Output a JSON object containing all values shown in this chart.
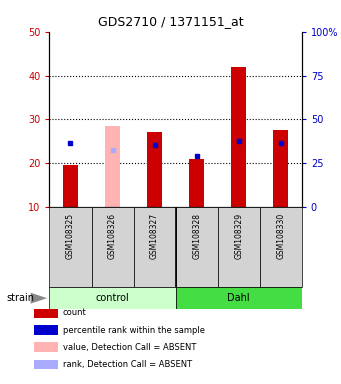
{
  "title": "GDS2710 / 1371151_at",
  "samples": [
    "GSM108325",
    "GSM108326",
    "GSM108327",
    "GSM108328",
    "GSM108329",
    "GSM108330"
  ],
  "groups": [
    "control",
    "control",
    "control",
    "Dahl",
    "Dahl",
    "Dahl"
  ],
  "group_labels": [
    "control",
    "Dahl"
  ],
  "group_colors_light": "#ccffcc",
  "group_colors_dark": "#44dd44",
  "bar_bottom": 10,
  "ylim_left": [
    10,
    50
  ],
  "ylim_right": [
    0,
    100
  ],
  "yticks_left": [
    10,
    20,
    30,
    40,
    50
  ],
  "yticks_right": [
    0,
    25,
    50,
    75,
    100
  ],
  "ytick_labels_right": [
    "0",
    "25",
    "50",
    "75",
    "100%"
  ],
  "red_bar_tops": [
    19.5,
    null,
    27.0,
    21.0,
    42.0,
    27.5
  ],
  "pink_bar_tops": [
    null,
    28.5,
    null,
    null,
    null,
    null
  ],
  "blue_square_y": [
    24.5,
    null,
    24.0,
    21.5,
    25.0,
    24.5
  ],
  "light_blue_square_y": [
    null,
    23.0,
    null,
    null,
    null,
    null
  ],
  "red_color": "#cc0000",
  "pink_color": "#ffb3b3",
  "blue_color": "#0000cc",
  "light_blue_color": "#aaaaff",
  "left_axis_color": "#cc0000",
  "right_axis_color": "#0000cc",
  "strain_label": "strain",
  "legend_items": [
    {
      "color": "#cc0000",
      "label": "count"
    },
    {
      "color": "#0000cc",
      "label": "percentile rank within the sample"
    },
    {
      "color": "#ffb3b3",
      "label": "value, Detection Call = ABSENT"
    },
    {
      "color": "#aaaaff",
      "label": "rank, Detection Call = ABSENT"
    }
  ],
  "bar_width": 0.35,
  "gray_color": "#d3d3d3"
}
